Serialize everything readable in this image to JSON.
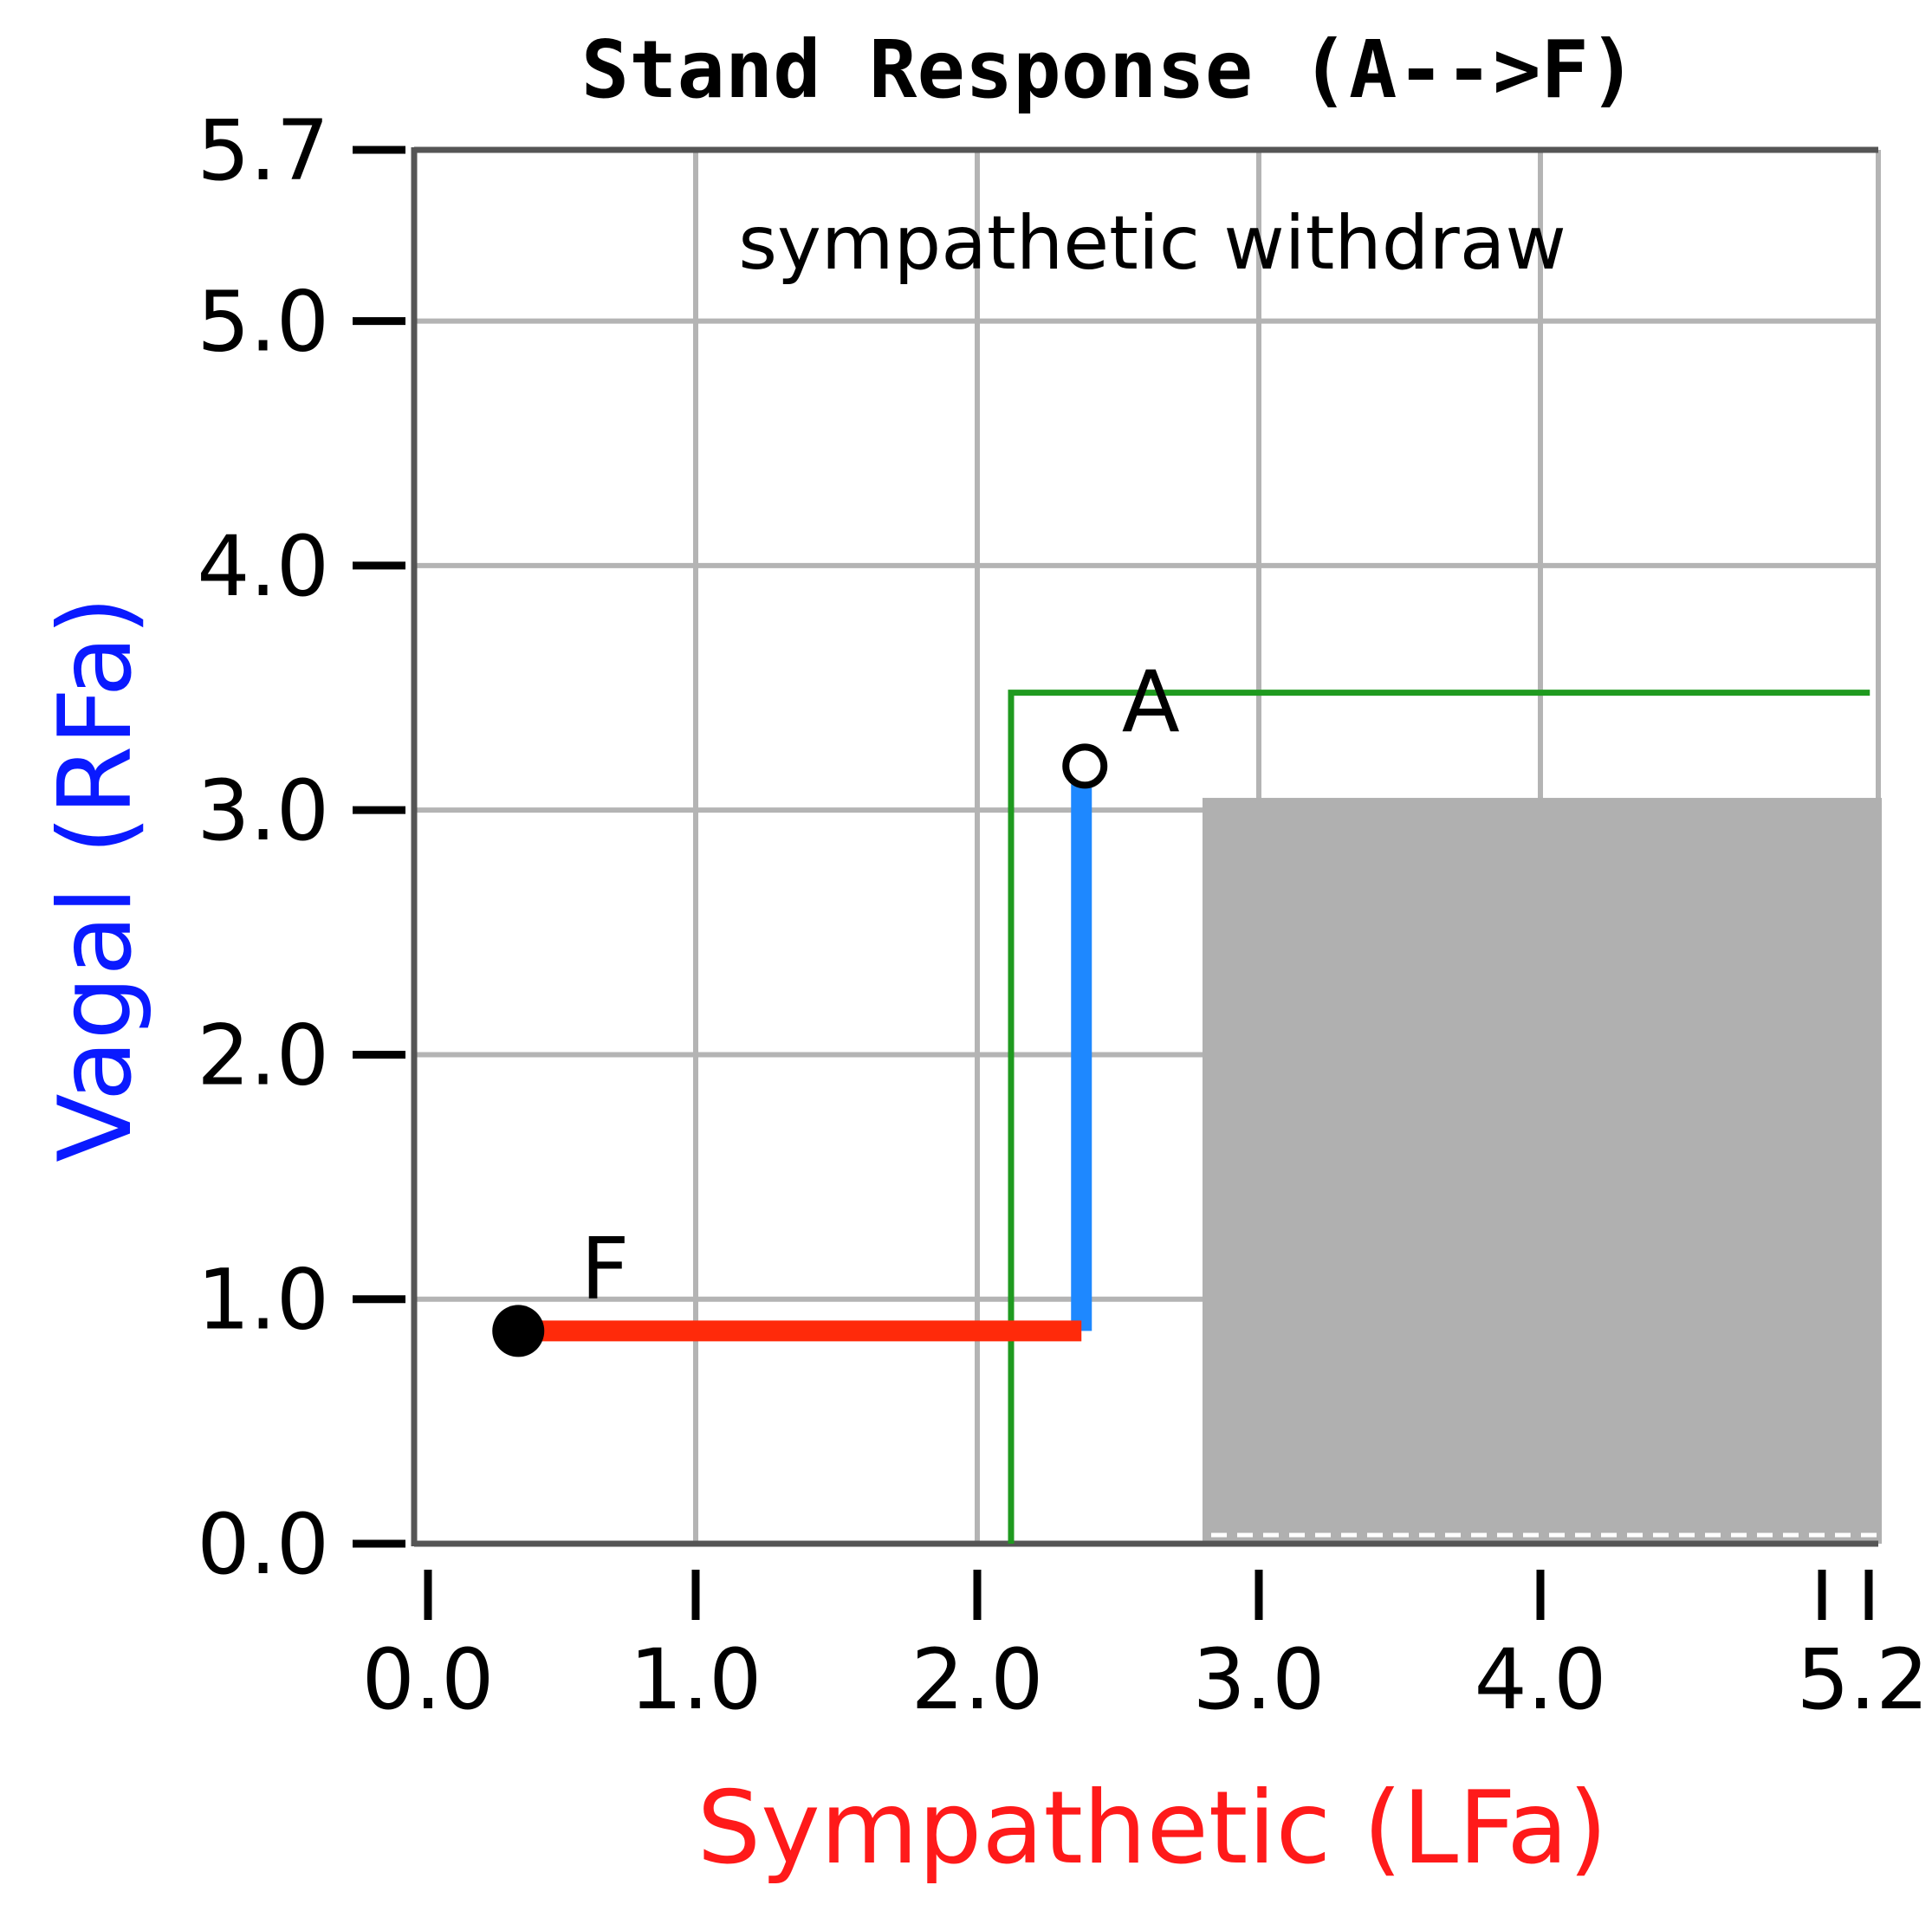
{
  "chart_data": {
    "type": "line",
    "title": "Stand Response (A-->F)",
    "annotation": "sympathetic withdraw",
    "xlabel": "Sympathetic (LFa)",
    "ylabel": "Vagal (RFa)",
    "xlim": [
      0,
      5.2
    ],
    "ylim": [
      0,
      5.7
    ],
    "x_ticks": [
      0.0,
      1.0,
      2.0,
      3.0,
      4.0,
      5.2
    ],
    "x_tick_labels": [
      "0.0",
      "1.0",
      "2.0",
      "3.0",
      "4.0",
      "5.2"
    ],
    "y_ticks": [
      0.0,
      1.0,
      2.0,
      3.0,
      4.0,
      5.0,
      5.7
    ],
    "y_tick_labels": [
      "0.0",
      "1.0",
      "2.0",
      "3.0",
      "4.0",
      "5.0",
      "5.7"
    ],
    "grid": true,
    "points": [
      {
        "label": "A",
        "x": 2.37,
        "y": 3.18,
        "marker": "open-circle"
      },
      {
        "label": "F",
        "x": 0.37,
        "y": 0.87,
        "marker": "filled-circle"
      }
    ],
    "series": [
      {
        "points": [
          [
            2.37,
            3.18
          ],
          [
            2.37,
            0.87
          ]
        ],
        "color": "#1e88ff"
      },
      {
        "points": [
          [
            2.37,
            0.87
          ],
          [
            0.37,
            0.87
          ]
        ],
        "color": "#ff2a0a"
      }
    ],
    "threshold_lines": [
      {
        "points": [
          [
            2.12,
            0.0
          ],
          [
            2.12,
            3.48
          ],
          [
            5.17,
            3.48
          ]
        ],
        "color": "#1f9a1f"
      }
    ],
    "shaded_region": {
      "x": [
        2.8,
        5.2
      ],
      "y": [
        0.0,
        3.05
      ],
      "color": "#b0b0b0"
    },
    "colors": {
      "xlabel": "#ff1a1a",
      "ylabel": "#0a1aff",
      "grid": "#b4b4b4"
    }
  }
}
